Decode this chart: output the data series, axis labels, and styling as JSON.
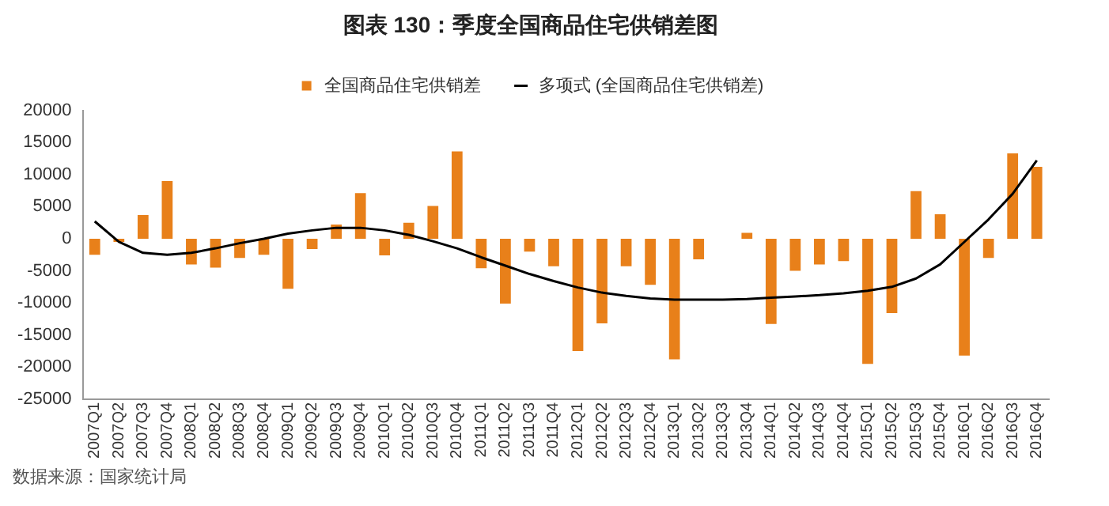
{
  "chart_data": {
    "type": "bar",
    "title": "图表 130：季度全国商品住宅供销差图",
    "categories": [
      "2007Q1",
      "2007Q2",
      "2007Q3",
      "2007Q4",
      "2008Q1",
      "2008Q2",
      "2008Q3",
      "2008Q4",
      "2009Q1",
      "2009Q2",
      "2009Q3",
      "2009Q4",
      "2010Q1",
      "2010Q2",
      "2010Q3",
      "2010Q4",
      "2011Q1",
      "2011Q2",
      "2011Q3",
      "2011Q4",
      "2012Q1",
      "2012Q2",
      "2012Q3",
      "2012Q4",
      "2013Q1",
      "2013Q2",
      "2013Q3",
      "2013Q4",
      "2014Q1",
      "2014Q2",
      "2014Q3",
      "2014Q4",
      "2015Q1",
      "2015Q2",
      "2015Q3",
      "2015Q4",
      "2016Q1",
      "2016Q2",
      "2016Q3",
      "2016Q4"
    ],
    "series": [
      {
        "name": "全国商品住宅供销差",
        "color": "#e8801a",
        "values": [
          -2500,
          -500,
          3700,
          9000,
          -4000,
          -4500,
          -3000,
          -2500,
          -7800,
          -1600,
          2200,
          7100,
          -2600,
          2500,
          5100,
          13600,
          -4600,
          -10100,
          -2000,
          -4300,
          -17500,
          -13200,
          -4300,
          -7200,
          -18800,
          -3200,
          0,
          900,
          -13300,
          -5000,
          -4000,
          -3500,
          -19500,
          -11600,
          7400,
          3800,
          -18200,
          -3000,
          13300,
          11200
        ]
      },
      {
        "name": "多项式 (全国商品住宅供销差)",
        "type": "line",
        "color": "#000000",
        "values": [
          2700,
          -500,
          -2200,
          -2500,
          -2200,
          -1500,
          -700,
          0,
          800,
          1300,
          1700,
          1700,
          1300,
          600,
          -400,
          -1500,
          -2900,
          -4200,
          -5500,
          -6600,
          -7600,
          -8400,
          -8900,
          -9300,
          -9500,
          -9500,
          -9500,
          -9400,
          -9200,
          -9000,
          -8800,
          -8500,
          -8100,
          -7500,
          -6200,
          -4000,
          -500,
          3000,
          7000,
          12200
        ]
      }
    ],
    "ylim": [
      -25000,
      20000
    ],
    "yticks": [
      -25000,
      -20000,
      -15000,
      -10000,
      -5000,
      0,
      5000,
      10000,
      15000,
      20000
    ],
    "grid": false,
    "legend": "top",
    "marker": "none",
    "line_style": "solid",
    "annotations": [
      "数据来源：国家统计局"
    ]
  }
}
